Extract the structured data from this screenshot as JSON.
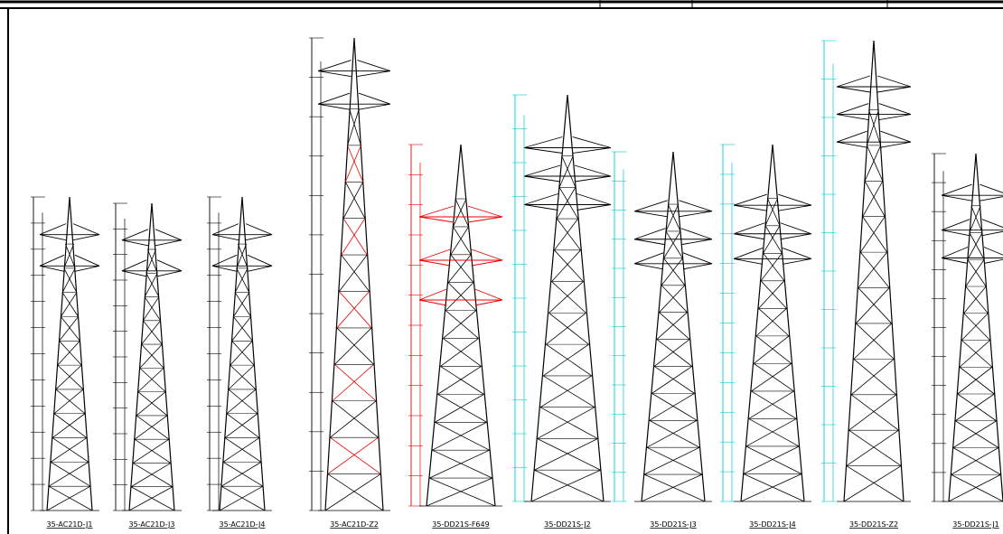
{
  "towers": [
    {
      "label": "35-AC21D-J1"
    },
    {
      "label": "35-AC21D-J3"
    },
    {
      "label": "35-AC21D-J4"
    },
    {
      "label": "35-AC21D-Z2"
    },
    {
      "label": "35-DD21S-F649"
    },
    {
      "label": "35-DD21S-J2"
    },
    {
      "label": "35-DD21S-J3"
    },
    {
      "label": "35-DD21S-J4"
    },
    {
      "label": "35-DD21S-Z2"
    },
    {
      "label": "35-DD21S-J1"
    }
  ]
}
